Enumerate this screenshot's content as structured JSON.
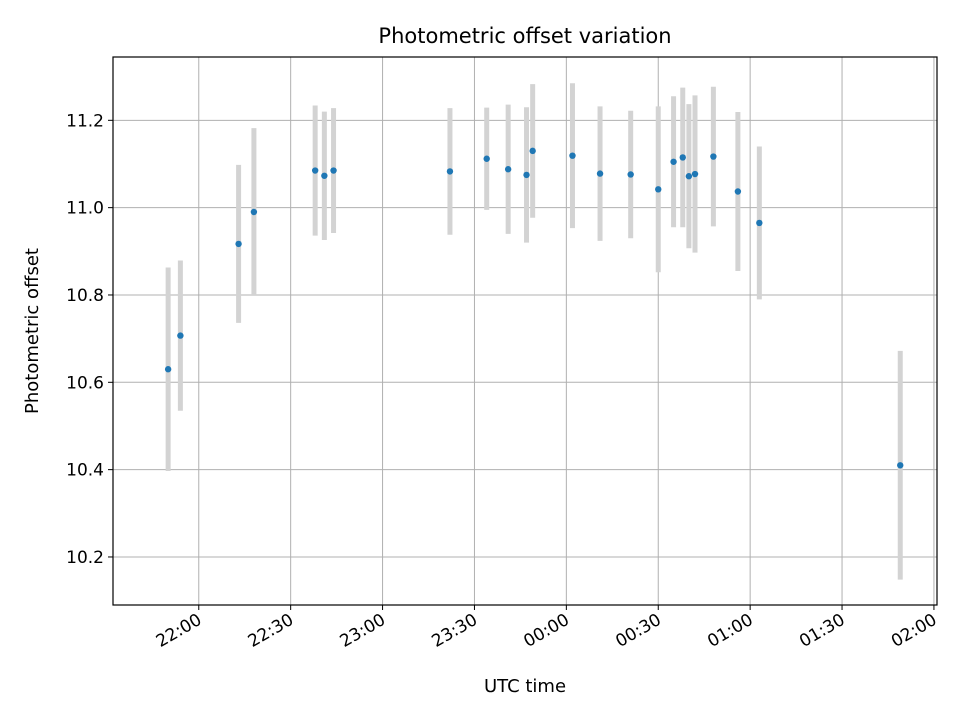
{
  "chart_data": {
    "type": "scatter",
    "title": "Photometric offset variation",
    "xlabel": "UTC time",
    "ylabel": "Photometric offset",
    "grid": true,
    "xlim": [
      "21:32",
      "02:01"
    ],
    "ylim": [
      10.09,
      11.345
    ],
    "x_ticks": [
      "22:00",
      "22:30",
      "23:00",
      "23:30",
      "00:00",
      "00:30",
      "01:00",
      "01:30",
      "02:00"
    ],
    "y_ticks": [
      "10.2",
      "10.4",
      "10.6",
      "10.8",
      "11.0",
      "11.2"
    ],
    "marker_color": "#1f77b4",
    "errorbar_color": "#d3d3d3",
    "series": [
      {
        "points": [
          {
            "x": "21:50",
            "y": 10.63,
            "err": 0.233
          },
          {
            "x": "21:54",
            "y": 10.707,
            "err": 0.172
          },
          {
            "x": "22:13",
            "y": 10.917,
            "err": 0.181
          },
          {
            "x": "22:18",
            "y": 10.99,
            "err": 0.192
          },
          {
            "x": "22:38",
            "y": 11.085,
            "err": 0.149
          },
          {
            "x": "22:41",
            "y": 11.073,
            "err": 0.147
          },
          {
            "x": "22:44",
            "y": 11.085,
            "err": 0.143
          },
          {
            "x": "23:22",
            "y": 11.083,
            "err": 0.145
          },
          {
            "x": "23:34",
            "y": 11.112,
            "err": 0.117
          },
          {
            "x": "23:41",
            "y": 11.088,
            "err": 0.148
          },
          {
            "x": "23:47",
            "y": 11.075,
            "err": 0.155
          },
          {
            "x": "23:49",
            "y": 11.13,
            "err": 0.153
          },
          {
            "x": "00:02",
            "y": 11.119,
            "err": 0.166
          },
          {
            "x": "00:11",
            "y": 11.078,
            "err": 0.154
          },
          {
            "x": "00:21",
            "y": 11.076,
            "err": 0.146
          },
          {
            "x": "00:30",
            "y": 11.042,
            "err": 0.19
          },
          {
            "x": "00:35",
            "y": 11.105,
            "err": 0.15
          },
          {
            "x": "00:38",
            "y": 11.115,
            "err": 0.16
          },
          {
            "x": "00:40",
            "y": 11.072,
            "err": 0.165
          },
          {
            "x": "00:42",
            "y": 11.077,
            "err": 0.18
          },
          {
            "x": "00:48",
            "y": 11.117,
            "err": 0.16
          },
          {
            "x": "00:56",
            "y": 11.037,
            "err": 0.182
          },
          {
            "x": "01:03",
            "y": 10.965,
            "err": 0.175
          },
          {
            "x": "01:49",
            "y": 10.41,
            "err": 0.262
          }
        ]
      }
    ]
  }
}
